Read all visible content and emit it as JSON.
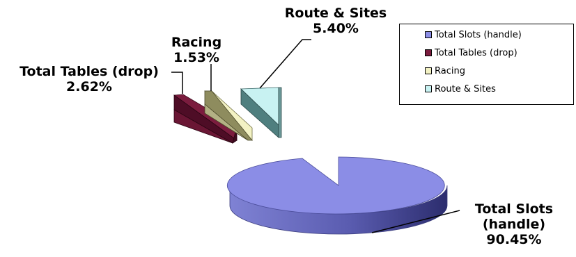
{
  "chart_data": {
    "type": "pie",
    "title": "",
    "slices": [
      {
        "label": "Total Slots  (handle)",
        "value": 90.45,
        "value_label": "90.45%",
        "color": "#8b8de6"
      },
      {
        "label": "Total Tables (drop)",
        "value": 2.62,
        "value_label": "2.62%",
        "color": "#7b1c3e"
      },
      {
        "label": "Racing",
        "value": 1.53,
        "value_label": "1.53%",
        "color": "#f3f2c4"
      },
      {
        "label": "Route & Sites",
        "value": 5.4,
        "value_label": "5.40%",
        "color": "#c8f2f2"
      }
    ],
    "data_labels": {
      "slots_line1": "Total Slots",
      "slots_line2": "(handle)",
      "slots_pct": "90.45%",
      "tables_name": "Total Tables (drop)",
      "tables_pct": "2.62%",
      "racing_name": "Racing",
      "racing_pct": "1.53%",
      "route_name": "Route & Sites",
      "route_pct": "5.40%"
    },
    "legend": {
      "position": "top-right",
      "items": [
        "Total Slots  (handle)",
        "Total Tables (drop)",
        "Racing",
        "Route & Sites"
      ]
    }
  }
}
